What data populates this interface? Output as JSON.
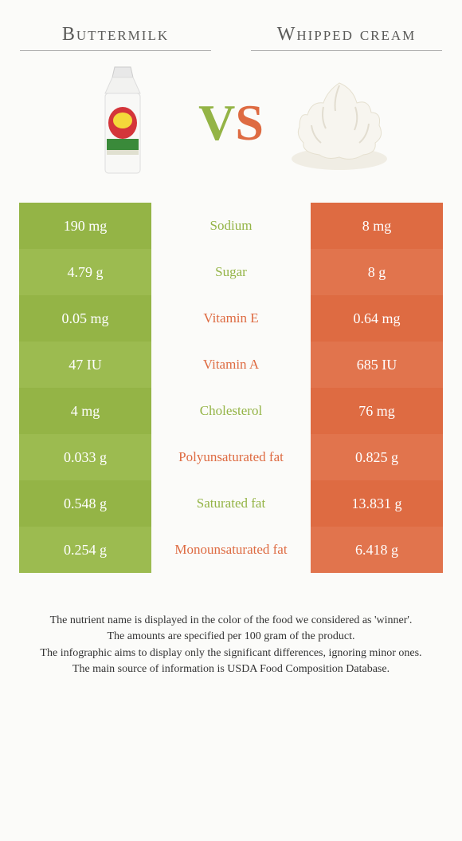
{
  "colors": {
    "left": "#94b446",
    "leftAlt": "#9cbb50",
    "right": "#de6b42",
    "rightAlt": "#e1744d",
    "bg": "#fbfbf9",
    "titleText": "#5a5a58"
  },
  "food": {
    "left": {
      "title": "Buttermilk"
    },
    "right": {
      "title": "Whipped cream"
    }
  },
  "vs": {
    "v": "V",
    "s": "S"
  },
  "rows": [
    {
      "left": "190 mg",
      "label": "Sodium",
      "right": "8 mg",
      "winner": "left"
    },
    {
      "left": "4.79 g",
      "label": "Sugar",
      "right": "8 g",
      "winner": "left"
    },
    {
      "left": "0.05 mg",
      "label": "Vitamin E",
      "right": "0.64 mg",
      "winner": "right"
    },
    {
      "left": "47 IU",
      "label": "Vitamin A",
      "right": "685 IU",
      "winner": "right"
    },
    {
      "left": "4 mg",
      "label": "Cholesterol",
      "right": "76 mg",
      "winner": "left"
    },
    {
      "left": "0.033 g",
      "label": "Polyunsaturated fat",
      "right": "0.825 g",
      "winner": "right"
    },
    {
      "left": "0.548 g",
      "label": "Saturated fat",
      "right": "13.831 g",
      "winner": "left"
    },
    {
      "left": "0.254 g",
      "label": "Monounsaturated fat",
      "right": "6.418 g",
      "winner": "right"
    }
  ],
  "footer": [
    "The nutrient name is displayed in the color of the food we considered as 'winner'.",
    "The amounts are specified per 100 gram of the product.",
    "The infographic aims to display only the significant differences, ignoring minor ones.",
    "The main source of information is USDA Food Composition Database."
  ]
}
